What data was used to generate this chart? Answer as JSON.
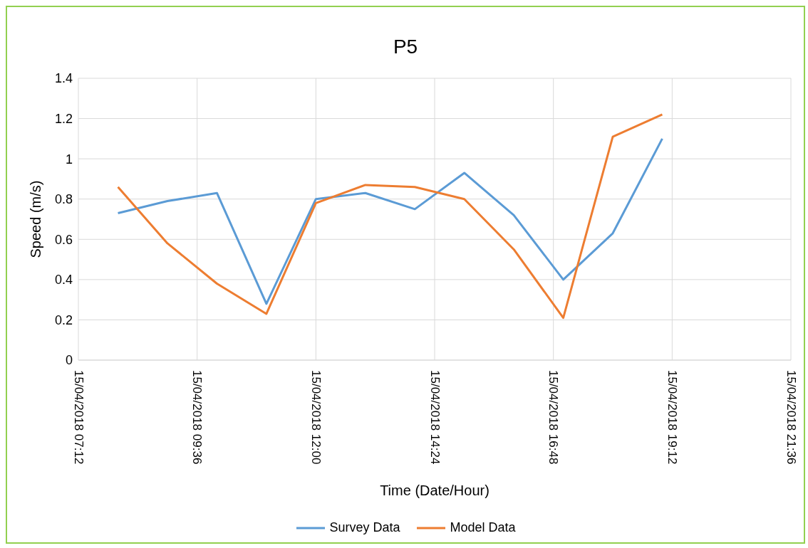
{
  "chart_data": {
    "type": "line",
    "title": "P5",
    "xlabel": "Time (Date/Hour)",
    "ylabel": "Speed (m/s)",
    "x": [
      "2018-04-15T08:00",
      "2018-04-15T09:00",
      "2018-04-15T10:00",
      "2018-04-15T11:00",
      "2018-04-15T12:00",
      "2018-04-15T13:00",
      "2018-04-15T14:00",
      "2018-04-15T15:00",
      "2018-04-15T16:00",
      "2018-04-15T17:00",
      "2018-04-15T18:00",
      "2018-04-15T19:00"
    ],
    "series": [
      {
        "name": "Survey Data",
        "color": "#5b9bd5",
        "values": [
          0.73,
          0.79,
          0.83,
          0.28,
          0.8,
          0.83,
          0.75,
          0.93,
          0.72,
          0.4,
          0.63,
          1.1
        ]
      },
      {
        "name": "Model Data",
        "color": "#ed7d31",
        "values": [
          0.86,
          0.58,
          0.38,
          0.23,
          0.78,
          0.87,
          0.86,
          0.8,
          0.55,
          0.21,
          1.11,
          1.22
        ]
      }
    ],
    "xlim": [
      "2018-04-15T07:12",
      "2018-04-15T21:36"
    ],
    "xticks": [
      {
        "value": "2018-04-15T07:12",
        "label": "15/04/2018 07:12"
      },
      {
        "value": "2018-04-15T09:36",
        "label": "15/04/2018 09:36"
      },
      {
        "value": "2018-04-15T12:00",
        "label": "15/04/2018 12:00"
      },
      {
        "value": "2018-04-15T14:24",
        "label": "15/04/2018 14:24"
      },
      {
        "value": "2018-04-15T16:48",
        "label": "15/04/2018 16:48"
      },
      {
        "value": "2018-04-15T19:12",
        "label": "15/04/2018 19:12"
      },
      {
        "value": "2018-04-15T21:36",
        "label": "15/04/2018 21:36"
      }
    ],
    "ylim": [
      0,
      1.4
    ],
    "yticks": [
      0,
      0.2,
      0.4,
      0.6,
      0.8,
      1,
      1.2,
      1.4
    ],
    "grid": true,
    "legend": "bottom",
    "marker": "none",
    "line_style": "solid"
  }
}
